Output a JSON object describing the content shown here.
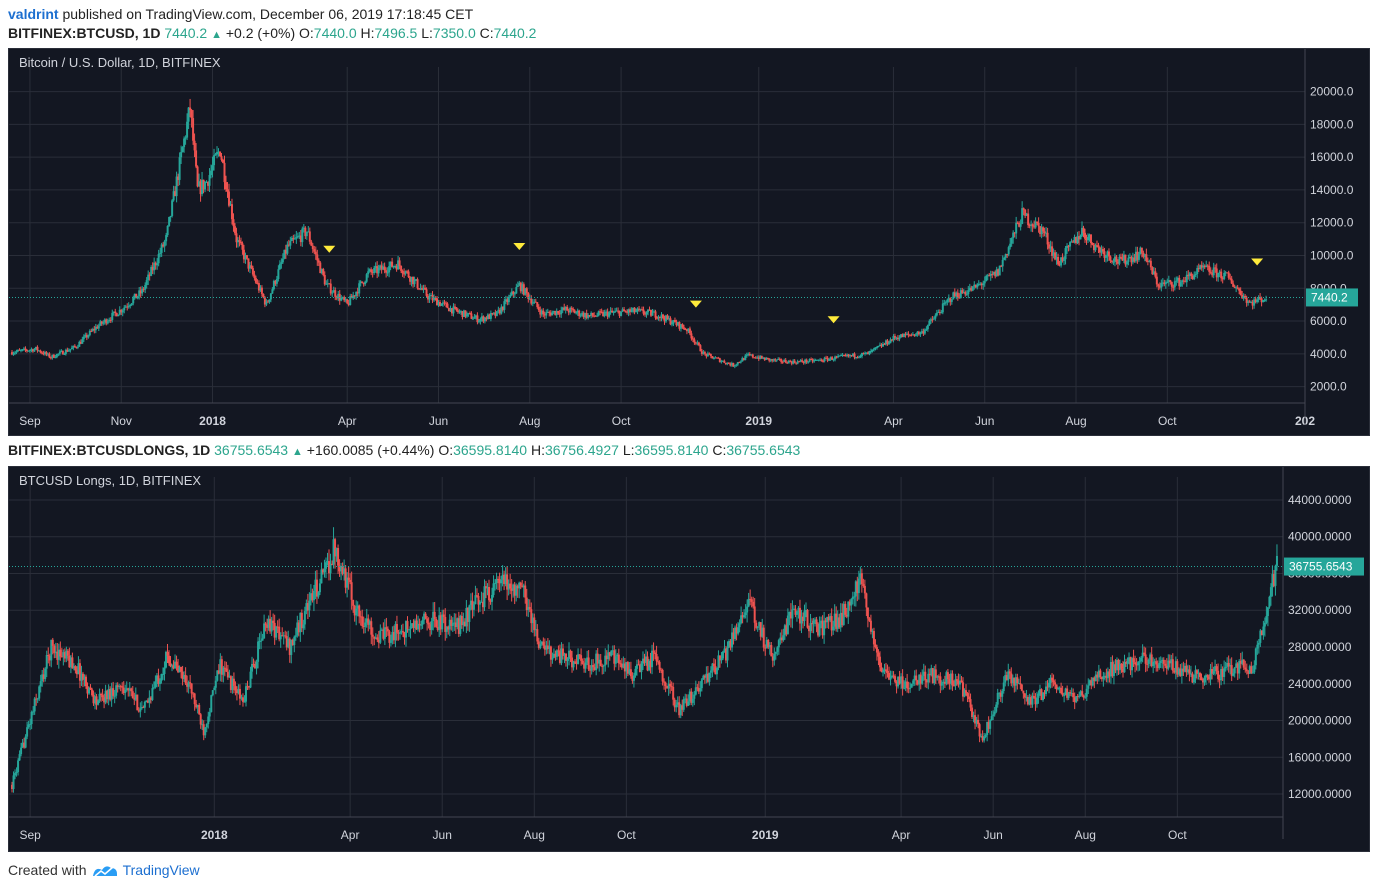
{
  "header": {
    "author": "valdrint",
    "published_text": "published on TradingView.com, December 06, 2019 17:18:45 CET"
  },
  "pane1": {
    "symbol_line": {
      "symbol": "BITFINEX:BTCUSD, 1D",
      "last": "7440.2",
      "change": "+0.2 (+0%)",
      "o_label": "O:",
      "o": "7440.0",
      "h_label": "H:",
      "h": "7496.5",
      "l_label": "L:",
      "l": "7350.0",
      "c_label": "C:",
      "c": "7440.2"
    },
    "title": "Bitcoin / U.S. Dollar, 1D, BITFINEX",
    "price_badge": "7440.2"
  },
  "pane2": {
    "symbol_line": {
      "symbol": "BITFINEX:BTCUSDLONGS, 1D",
      "last": "36755.6543",
      "change": "+160.0085 (+0.44%)",
      "o_label": "O:",
      "o": "36595.8140",
      "h_label": "H:",
      "h": "36756.4927",
      "l_label": "L:",
      "l": "36595.8140",
      "c_label": "C:",
      "c": "36755.6543"
    },
    "title": "BTCUSD Longs, 1D, BITFINEX",
    "price_badge": "36755.6543"
  },
  "footer": {
    "created_with": "Created with",
    "brand": "TradingView"
  },
  "colors": {
    "background": "#131722",
    "grid": "#2a2e39",
    "up": "#26a69a",
    "down": "#ef5350",
    "marker": "#ffeb3b",
    "axis_text": "#d1d4dc"
  },
  "chart_data": [
    {
      "type": "candlestick",
      "title": "Bitcoin / U.S. Dollar, 1D, BITFINEX",
      "x_labels": [
        "Sep",
        "Nov",
        "2018",
        "Apr",
        "Jun",
        "Aug",
        "Oct",
        "2019",
        "Apr",
        "Jun",
        "Aug",
        "Oct",
        "202"
      ],
      "y_ticks": [
        "20000.0",
        "18000.0",
        "16000.0",
        "14000.0",
        "12000.0",
        "10000.0",
        "8000.0",
        "6000.0",
        "4000.0",
        "2000.0"
      ],
      "ylim": [
        1000,
        21500
      ],
      "x": [
        "2017-08-20",
        "2017-09-05",
        "2017-09-15",
        "2017-10-01",
        "2017-10-15",
        "2017-11-01",
        "2017-11-15",
        "2017-12-01",
        "2017-12-10",
        "2017-12-17",
        "2017-12-22",
        "2017-12-28",
        "2018-01-06",
        "2018-01-17",
        "2018-02-06",
        "2018-02-20",
        "2018-03-05",
        "2018-03-18",
        "2018-04-01",
        "2018-04-15",
        "2018-05-05",
        "2018-05-25",
        "2018-06-10",
        "2018-06-28",
        "2018-07-10",
        "2018-07-25",
        "2018-08-10",
        "2018-08-25",
        "2018-09-10",
        "2018-09-25",
        "2018-10-10",
        "2018-10-25",
        "2018-11-14",
        "2018-11-25",
        "2018-12-15",
        "2018-12-25",
        "2019-01-10",
        "2019-01-25",
        "2019-02-10",
        "2019-02-25",
        "2019-03-15",
        "2019-04-02",
        "2019-04-20",
        "2019-05-10",
        "2019-05-25",
        "2019-06-10",
        "2019-06-26",
        "2019-07-10",
        "2019-07-20",
        "2019-08-05",
        "2019-08-15",
        "2019-08-30",
        "2019-09-15",
        "2019-09-25",
        "2019-10-10",
        "2019-10-25",
        "2019-11-10",
        "2019-11-25",
        "2019-12-06"
      ],
      "close": [
        4100,
        4300,
        3800,
        4400,
        5600,
        6700,
        7800,
        11000,
        15500,
        19000,
        14000,
        14500,
        16500,
        11000,
        7000,
        10500,
        11500,
        8200,
        7000,
        8900,
        9500,
        7500,
        6700,
        6100,
        6400,
        8200,
        6400,
        6700,
        6300,
        6500,
        6600,
        6400,
        5500,
        4000,
        3300,
        3900,
        3600,
        3500,
        3600,
        3800,
        4000,
        5000,
        5300,
        7500,
        8000,
        9000,
        12500,
        11500,
        9500,
        11500,
        10500,
        9600,
        10200,
        8200,
        8400,
        9200,
        8700,
        7100,
        7440
      ],
      "markers": [
        {
          "date": "2018-03-20"
        },
        {
          "date": "2018-07-25"
        },
        {
          "date": "2018-11-20"
        },
        {
          "date": "2019-02-20"
        },
        {
          "date": "2019-11-30"
        }
      ]
    },
    {
      "type": "candlestick",
      "title": "BTCUSD Longs, 1D, BITFINEX",
      "x_labels": [
        "Sep",
        "2018",
        "Apr",
        "Jun",
        "Aug",
        "Oct",
        "2019",
        "Apr",
        "Jun",
        "Aug",
        "Oct"
      ],
      "y_ticks": [
        "44000.0000",
        "40000.0000",
        "36000.0000",
        "32000.0000",
        "28000.0000",
        "24000.0000",
        "20000.0000",
        "16000.0000",
        "12000.0000"
      ],
      "ylim": [
        9500,
        46500
      ],
      "x": [
        "2017-08-20",
        "2017-09-01",
        "2017-09-15",
        "2017-10-01",
        "2017-10-15",
        "2017-11-01",
        "2017-11-15",
        "2017-12-01",
        "2017-12-15",
        "2017-12-25",
        "2018-01-05",
        "2018-01-20",
        "2018-02-05",
        "2018-02-20",
        "2018-03-05",
        "2018-03-15",
        "2018-03-22",
        "2018-04-05",
        "2018-04-20",
        "2018-05-10",
        "2018-05-25",
        "2018-06-10",
        "2018-06-25",
        "2018-07-10",
        "2018-07-25",
        "2018-08-05",
        "2018-08-20",
        "2018-09-05",
        "2018-09-20",
        "2018-10-05",
        "2018-10-20",
        "2018-11-05",
        "2018-11-20",
        "2018-12-05",
        "2018-12-20",
        "2019-01-05",
        "2019-01-20",
        "2019-02-05",
        "2019-02-20",
        "2019-03-05",
        "2019-03-20",
        "2019-04-05",
        "2019-04-20",
        "2019-05-10",
        "2019-05-25",
        "2019-06-10",
        "2019-06-26",
        "2019-07-10",
        "2019-07-25",
        "2019-08-10",
        "2019-08-25",
        "2019-09-10",
        "2019-09-25",
        "2019-10-10",
        "2019-10-25",
        "2019-11-10",
        "2019-11-20",
        "2019-11-30",
        "2019-12-06"
      ],
      "close": [
        13000,
        20000,
        28000,
        26000,
        22000,
        24000,
        21000,
        27000,
        24000,
        19000,
        26000,
        22000,
        31000,
        28000,
        33000,
        36000,
        39000,
        32000,
        29000,
        30000,
        31000,
        30000,
        33000,
        35000,
        34000,
        28000,
        27000,
        26000,
        27000,
        25000,
        27000,
        21000,
        24000,
        27000,
        33000,
        27000,
        32000,
        30000,
        31000,
        35000,
        25000,
        24000,
        25000,
        24000,
        18000,
        25000,
        22000,
        24000,
        22000,
        25000,
        26000,
        27000,
        26000,
        25000,
        25000,
        26000,
        25500,
        33000,
        36755
      ]
    }
  ]
}
